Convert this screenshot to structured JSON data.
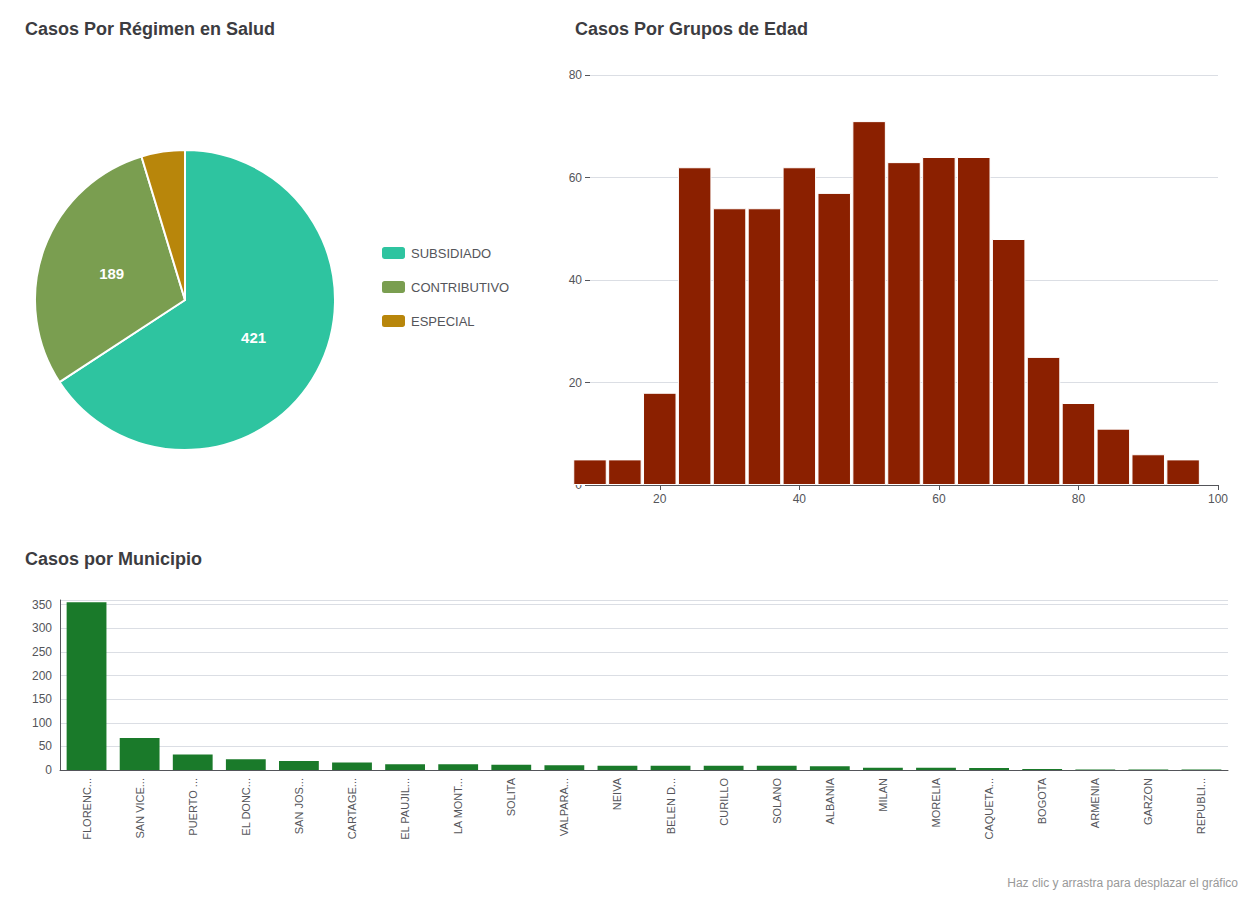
{
  "chart_data": [
    {
      "type": "pie",
      "title": "Casos Por Régimen en Salud",
      "categories": [
        "SUBSIDIADO",
        "CONTRIBUTIVO",
        "ESPECIAL"
      ],
      "values": [
        421,
        189,
        30
      ],
      "value_labels": [
        "421",
        "189",
        null
      ],
      "data_labels": true,
      "colors": [
        "#2ec4a0",
        "#7a9e50",
        "#b8860b"
      ],
      "legend": "right"
    },
    {
      "type": "bar",
      "title": "Casos Por Grupos de Edad",
      "x": [
        10,
        15,
        20,
        25,
        30,
        35,
        40,
        45,
        50,
        55,
        60,
        65,
        70,
        75,
        80,
        85,
        90,
        95
      ],
      "values": [
        5,
        5,
        18,
        62,
        54,
        54,
        62,
        57,
        71,
        63,
        64,
        64,
        48,
        25,
        16,
        11,
        6,
        5
      ],
      "color": "#8b2000",
      "xlim": [
        10,
        100
      ],
      "xticks": [
        20,
        40,
        60,
        80,
        100
      ],
      "ylim": [
        0,
        80
      ],
      "yticks": [
        0,
        20,
        40,
        60,
        80
      ],
      "grid": true
    },
    {
      "type": "bar",
      "title": "Casos por Municipio",
      "categories": [
        "FLORENC...",
        "SAN VICE...",
        "PUERTO ...",
        "EL DONC...",
        "SAN JOS...",
        "CARTAGE...",
        "EL PAUJIL...",
        "LA MONT...",
        "SOLITA",
        "VALPARA...",
        "NEIVA",
        "BELEN D...",
        "CURILLO",
        "SOLANO",
        "ALBANIA",
        "MILAN",
        "MORELIA",
        "CAQUETA...",
        "BOGOTA",
        "ARMENIA",
        "GARZON",
        "REPUBLI..."
      ],
      "values": [
        355,
        68,
        33,
        23,
        19,
        16,
        12,
        12,
        11,
        10,
        9,
        9,
        9,
        9,
        8,
        5,
        5,
        4,
        2,
        1,
        1,
        1
      ],
      "color": "#1a7a2a",
      "ylim": [
        0,
        360
      ],
      "yticks": [
        0,
        50,
        100,
        150,
        200,
        250,
        300,
        350
      ],
      "grid": true,
      "annotations": [
        "Haz clic y arrastra para desplazar el gráfico"
      ]
    }
  ]
}
